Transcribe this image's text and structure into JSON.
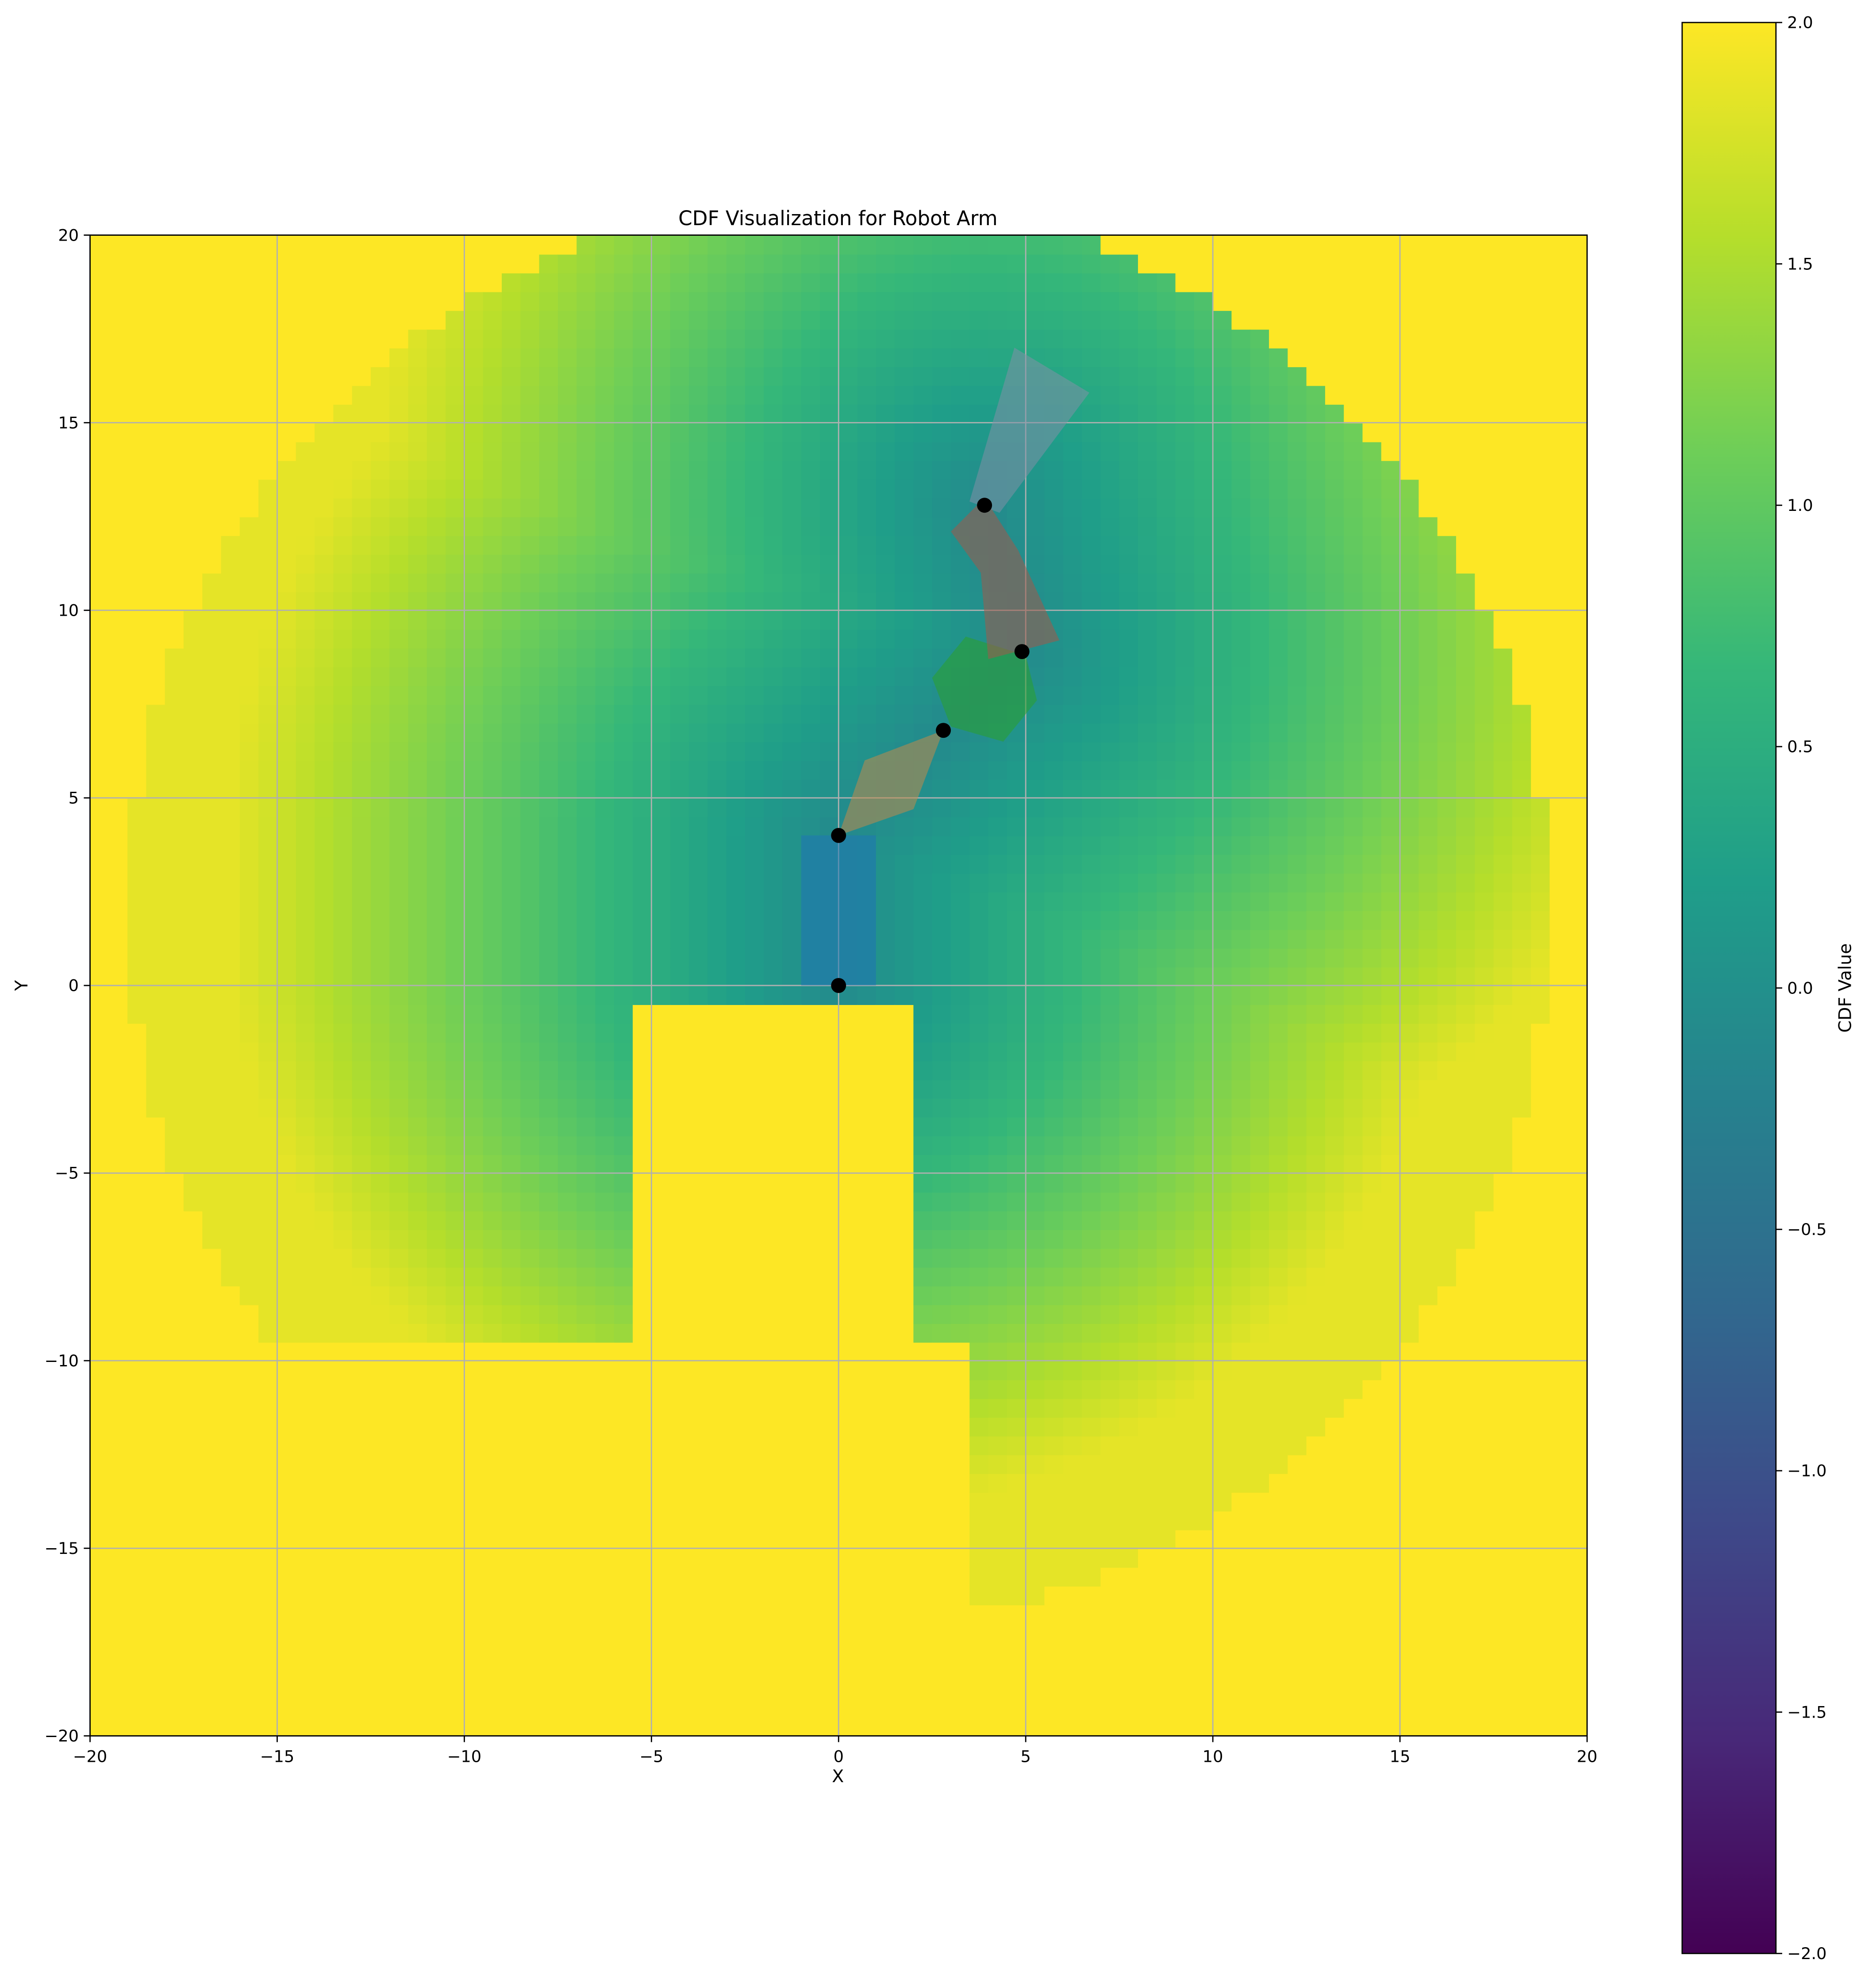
{
  "chart_data": {
    "type": "heatmap",
    "title": "CDF Visualization for Robot Arm",
    "xlabel": "X",
    "ylabel": "Y",
    "xlim": [
      -20,
      20
    ],
    "ylim": [
      -20,
      20
    ],
    "x_ticks": [
      -20,
      -15,
      -10,
      -5,
      0,
      5,
      10,
      15,
      20
    ],
    "y_ticks": [
      -20,
      -15,
      -10,
      -5,
      0,
      5,
      10,
      15,
      20
    ],
    "x_tick_labels": [
      "−20",
      "−15",
      "−10",
      "−5",
      "0",
      "5",
      "10",
      "15",
      "20"
    ],
    "y_tick_labels": [
      "−20",
      "−15",
      "−10",
      "−5",
      "0",
      "5",
      "10",
      "15",
      "20"
    ],
    "grid": true,
    "colormap": "viridis",
    "colormap_stops": [
      "#440154",
      "#482878",
      "#3e4989",
      "#31688e",
      "#26828e",
      "#1f9e89",
      "#35b779",
      "#6ece58",
      "#b5de2b",
      "#fde725"
    ],
    "colorbar": {
      "label": "CDF Value",
      "range": [
        -2.0,
        2.0
      ],
      "ticks": [
        2.0,
        1.5,
        1.0,
        0.5,
        0.0,
        -0.5,
        -1.0,
        -1.5,
        -2.0
      ],
      "tick_labels": [
        "2.0",
        "1.5",
        "1.0",
        "0.5",
        "0.0",
        "−0.5",
        "−1.0",
        "−1.5",
        "−2.0"
      ]
    },
    "field": {
      "outside_value": 2.0,
      "workspace_center": [
        0,
        2
      ],
      "workspace_outer_radius": 19,
      "lower_left_lobe_center": [
        -9,
        -4
      ],
      "lower_right_lobe_center": [
        9,
        -7
      ],
      "min_value_near_arm": -0.1,
      "grid_resolution": 0.5
    },
    "joints": [
      {
        "x": 0.0,
        "y": 0.0
      },
      {
        "x": 0.0,
        "y": 4.0
      },
      {
        "x": 2.8,
        "y": 6.8
      },
      {
        "x": 4.9,
        "y": 8.9
      },
      {
        "x": 3.9,
        "y": 12.8
      }
    ],
    "links": [
      {
        "name": "base",
        "color": "#1f77b4",
        "points": [
          [
            -1.0,
            0.0
          ],
          [
            1.0,
            0.0
          ],
          [
            1.0,
            4.0
          ],
          [
            -1.0,
            4.0
          ]
        ]
      },
      {
        "name": "link-1",
        "color": "#c08a4a",
        "points": [
          [
            0.0,
            4.0
          ],
          [
            0.7,
            6.0
          ],
          [
            2.8,
            6.8
          ],
          [
            2.0,
            4.7
          ]
        ]
      },
      {
        "name": "link-2",
        "color": "#2ca02c",
        "points": [
          [
            2.5,
            8.2
          ],
          [
            3.4,
            9.3
          ],
          [
            5.0,
            8.8
          ],
          [
            5.3,
            7.6
          ],
          [
            4.4,
            6.5
          ],
          [
            3.0,
            6.9
          ]
        ]
      },
      {
        "name": "link-3",
        "color": "#a05a4a",
        "points": [
          [
            3.0,
            12.1
          ],
          [
            3.9,
            13.0
          ],
          [
            4.8,
            11.6
          ],
          [
            5.9,
            9.2
          ],
          [
            4.0,
            8.7
          ],
          [
            3.8,
            11.0
          ]
        ]
      },
      {
        "name": "link-4",
        "color": "#7f8fa6",
        "points": [
          [
            3.5,
            12.9
          ],
          [
            4.7,
            17.0
          ],
          [
            6.7,
            15.8
          ],
          [
            4.3,
            12.6
          ]
        ]
      }
    ]
  }
}
